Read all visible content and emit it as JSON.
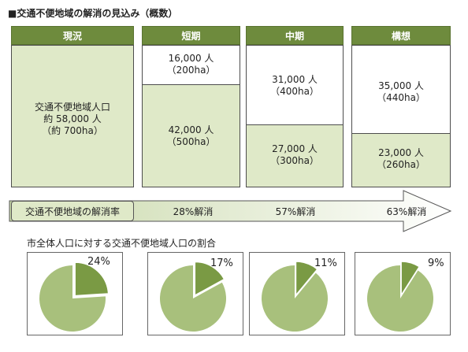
{
  "title": "■交通不便地域の解消の見込み（概数）",
  "columns": [
    {
      "header": "現況",
      "top_pop": "",
      "top_area": "",
      "bottom_pop": "交通不便地域人口",
      "bottom_pop2": "約 58,000 人",
      "bottom_area": "（約 700ha）"
    },
    {
      "header": "短期",
      "top_pop": "16,000 人",
      "top_area": "（200ha）",
      "bottom_pop": "42,000 人",
      "bottom_area": "（500ha）"
    },
    {
      "header": "中期",
      "top_pop": "31,000 人",
      "top_area": "（400ha）",
      "bottom_pop": "27,000 人",
      "bottom_area": "（300ha）"
    },
    {
      "header": "構想",
      "top_pop": "35,000 人",
      "top_area": "（440ha）",
      "bottom_pop": "23,000 人",
      "bottom_area": "（260ha）"
    }
  ],
  "resolution": {
    "label": "交通不便地域の解消率",
    "rates": [
      "28%解消",
      "57%解消",
      "63%解消"
    ]
  },
  "pie_section": {
    "subtitle": "市全体人口に対する交通不便地域人口の割合"
  },
  "colors": {
    "header": "#6e8b3d",
    "light_green": "#dfe9c8",
    "pie_main": "#a8c07c",
    "pie_slice": "#7a9a44"
  },
  "chart_data": {
    "type": "pie",
    "title": "市全体人口に対する交通不便地域人口の割合",
    "categories": [
      "現況",
      "短期",
      "中期",
      "構想"
    ],
    "series": [
      {
        "values": [
          24,
          17,
          11,
          9
        ]
      }
    ],
    "labels": [
      "24%",
      "17%",
      "11%",
      "9%"
    ]
  }
}
